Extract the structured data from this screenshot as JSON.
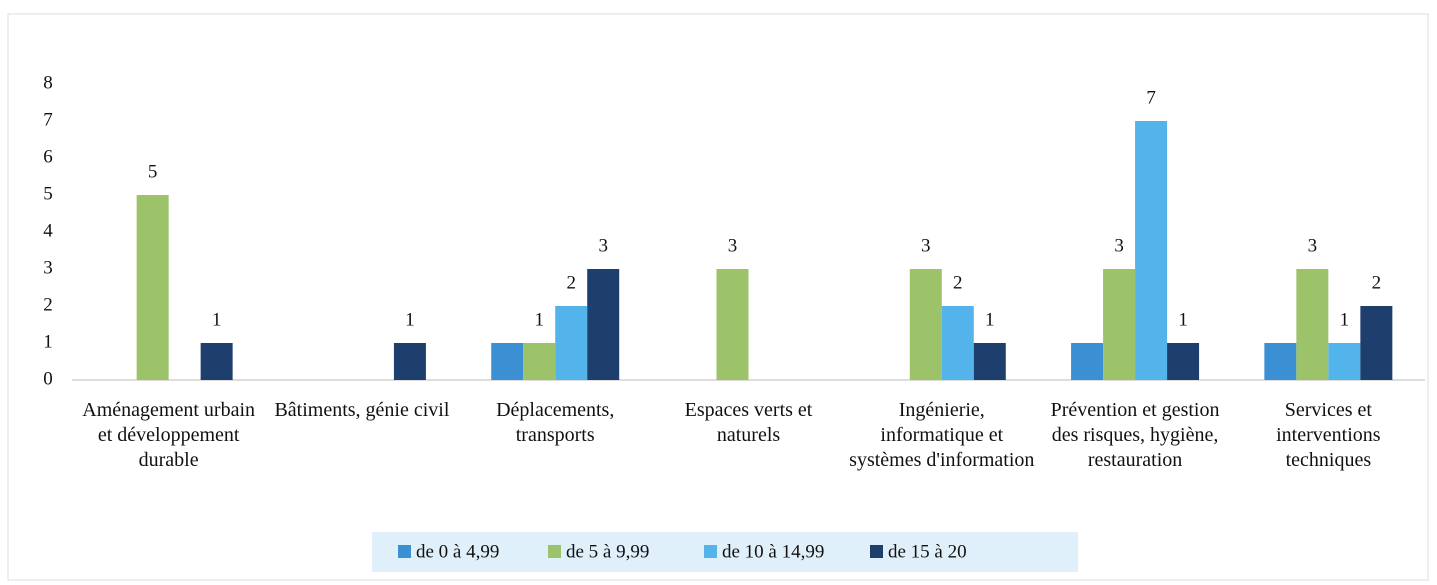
{
  "chart_data": {
    "type": "bar",
    "categories": [
      "Aménagement urbain et développement durable",
      "Bâtiments, génie civil",
      "Déplacements, transports",
      "Espaces verts et naturels",
      "Ingénierie, informatique et systèmes d'information",
      "Prévention et gestion des risques, hygiène, restauration",
      "Services et interventions techniques"
    ],
    "series": [
      {
        "name": "de 0 à 4,99",
        "color": "#3b8fd3",
        "data_labels": false,
        "values": [
          null,
          null,
          1,
          null,
          null,
          1,
          1
        ]
      },
      {
        "name": "de 5 à 9,99",
        "color": "#9cc26a",
        "data_labels": true,
        "values": [
          5,
          null,
          1,
          3,
          3,
          3,
          3
        ]
      },
      {
        "name": "de 10 à 14,99",
        "color": "#52b4ea",
        "data_labels": true,
        "values": [
          null,
          null,
          2,
          null,
          2,
          7,
          1
        ]
      },
      {
        "name": "de 15 à 20",
        "color": "#1e3f6e",
        "data_labels": true,
        "values": [
          1,
          1,
          3,
          null,
          1,
          1,
          2
        ]
      }
    ],
    "ylim": [
      0,
      8
    ],
    "yticks": [
      0,
      1,
      2,
      3,
      4,
      5,
      6,
      7,
      8
    ],
    "grid": false,
    "legend": "bottom"
  }
}
